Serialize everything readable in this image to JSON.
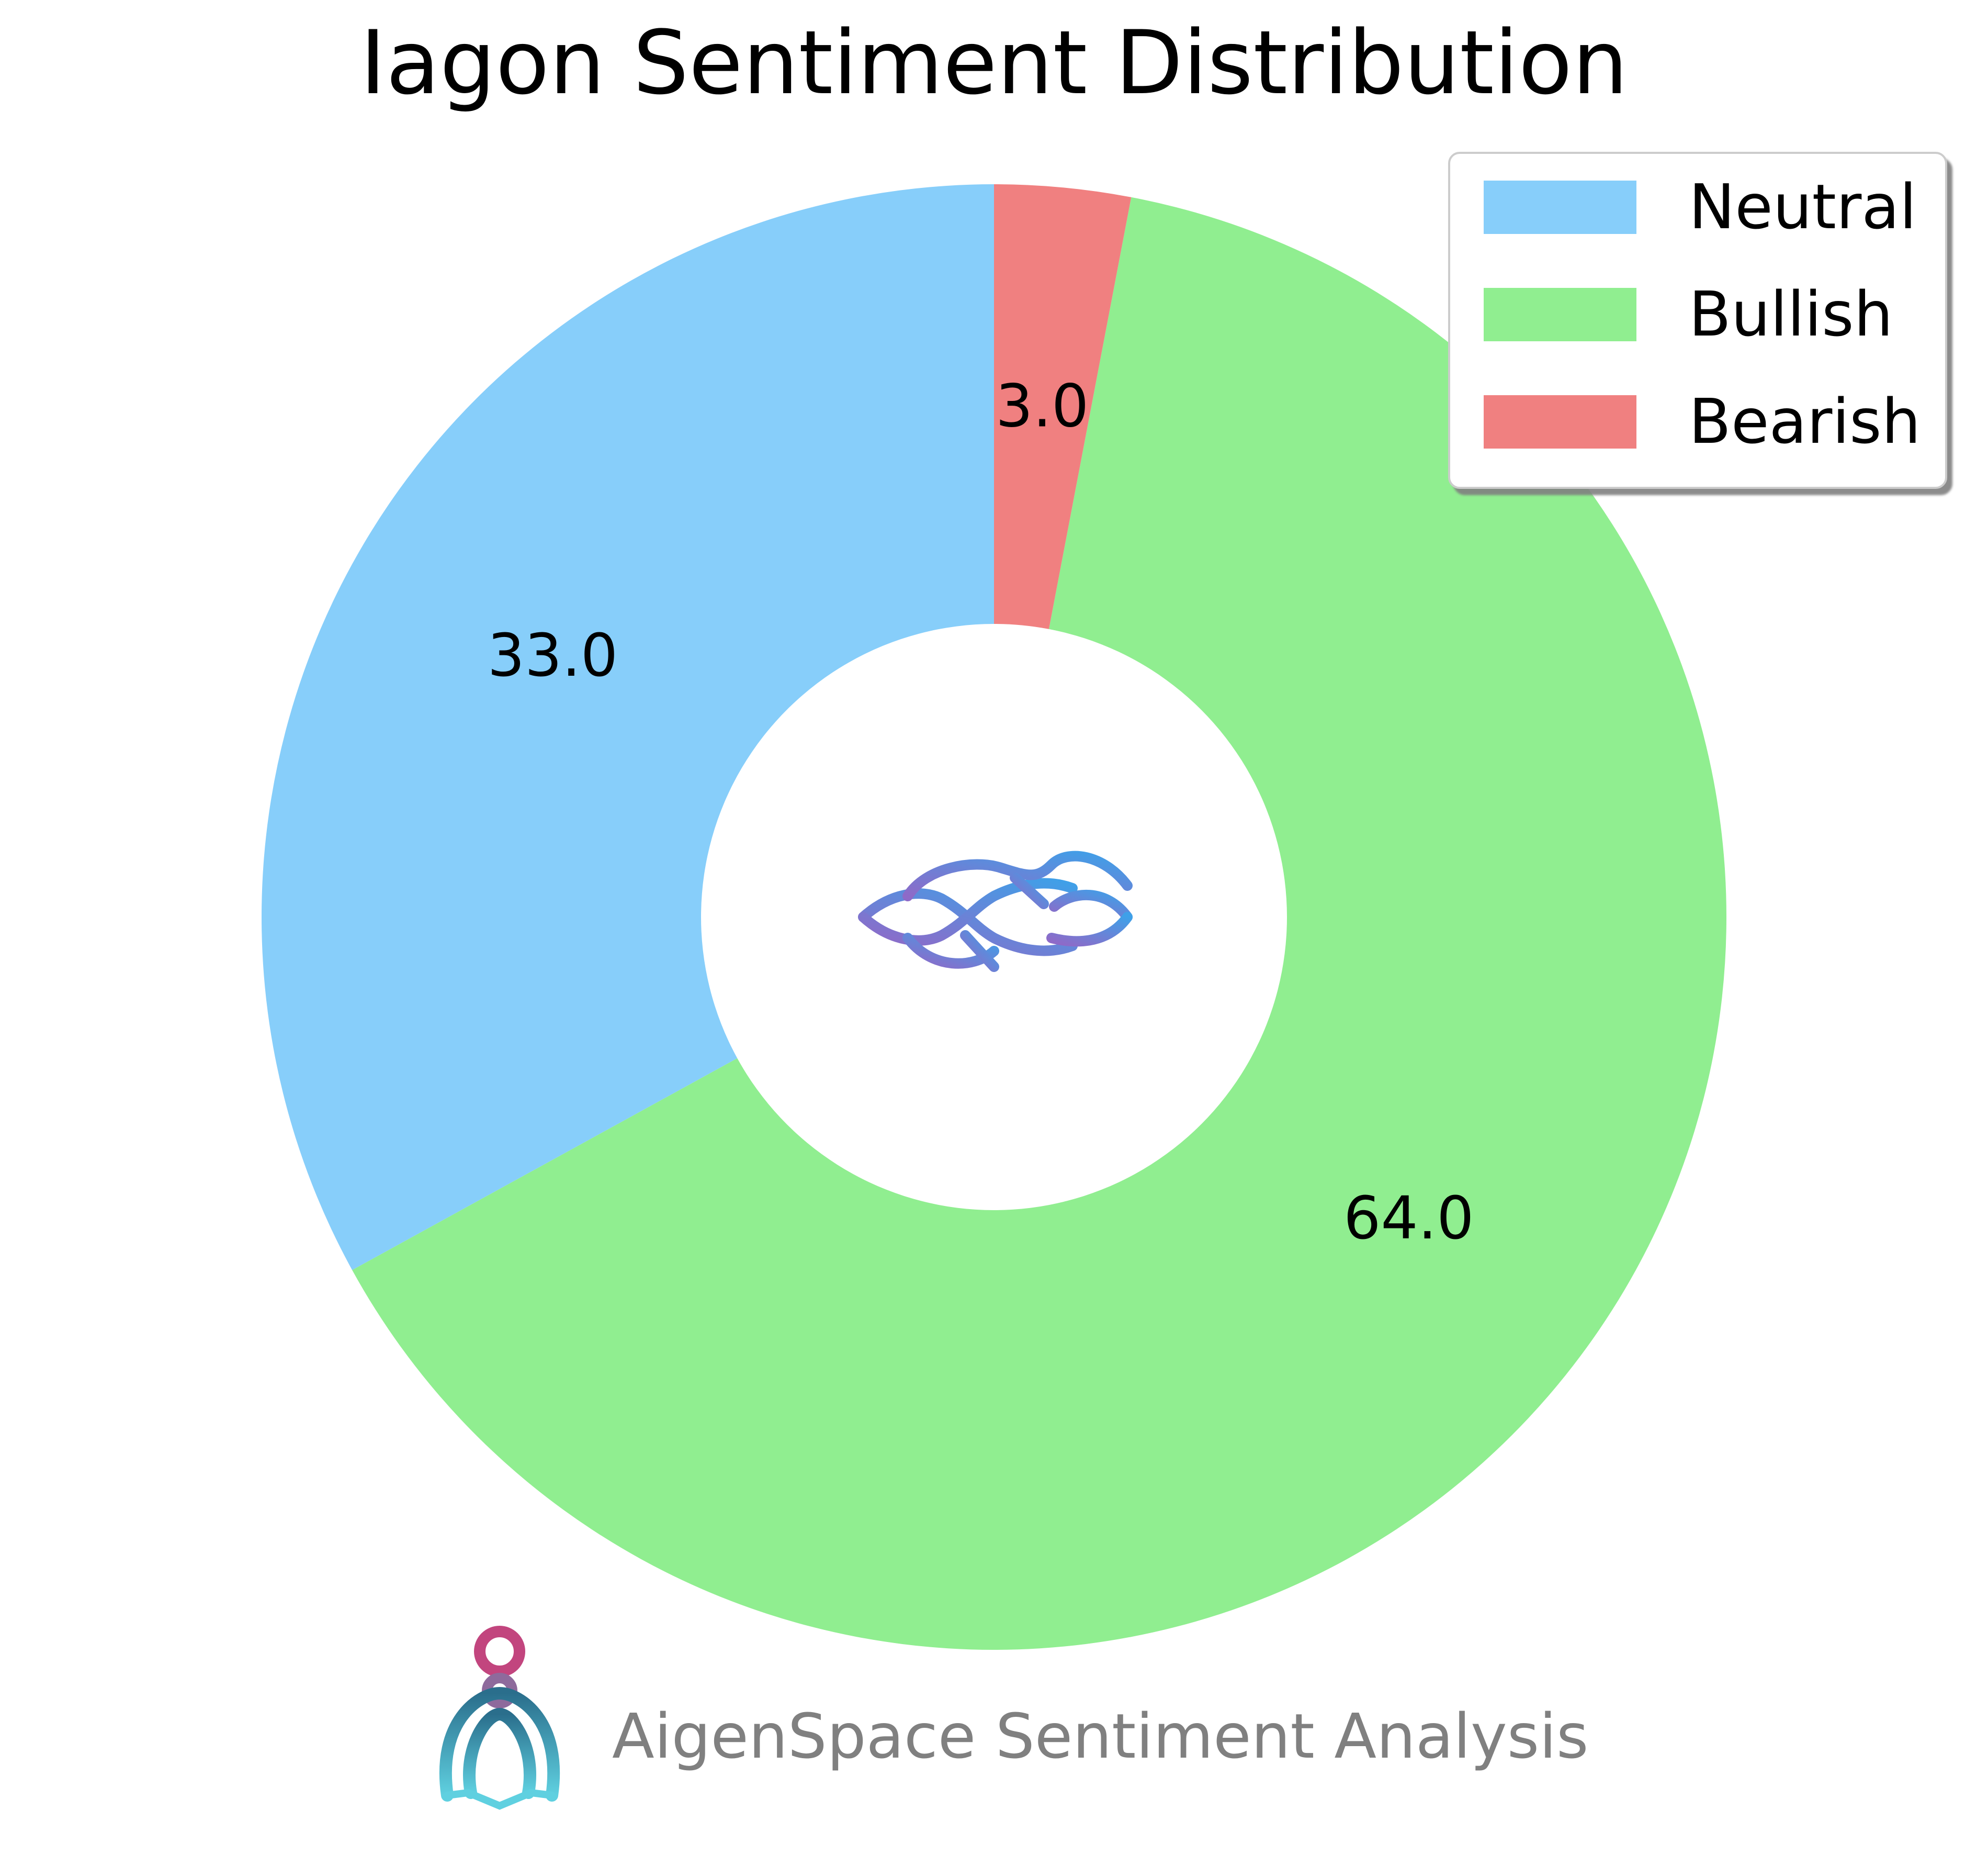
{
  "chart_data": {
    "type": "pie",
    "variant": "donut",
    "title": "Iagon Sentiment Distribution",
    "categories": [
      "Neutral",
      "Bullish",
      "Bearish"
    ],
    "values": [
      33.0,
      64.0,
      3.0
    ],
    "value_labels": [
      "33.0",
      "64.0",
      "3.0"
    ],
    "colors": [
      "#87CEFA",
      "#90EE90",
      "#F08080"
    ],
    "start": "top, counterclockwise (Neutral first)",
    "legend": {
      "placement": "top-right",
      "entries": [
        "Neutral",
        "Bullish",
        "Bearish"
      ],
      "shadow": true
    }
  },
  "center_logo": {
    "icon": "iagon-logo-icon",
    "gradient": [
      "#8E6AC8",
      "#3FA0E8"
    ]
  },
  "footer": {
    "text": "AigenSpace Sentiment Analysis",
    "icon": "aigenspace-logo-icon",
    "text_color": "#808080"
  }
}
